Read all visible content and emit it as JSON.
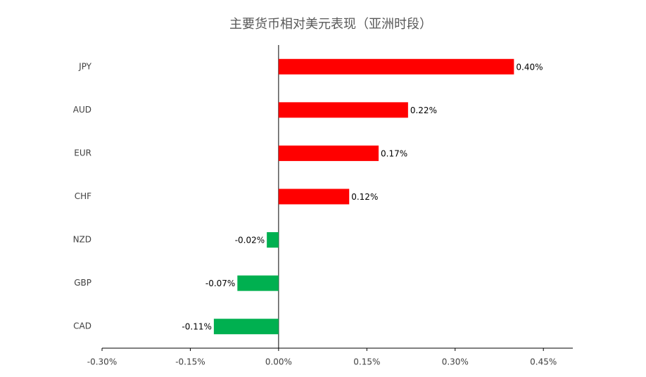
{
  "chart_data": {
    "type": "hbar",
    "title": "主要货币相对美元表现（亚洲时段）",
    "categories": [
      "JPY",
      "AUD",
      "EUR",
      "CHF",
      "NZD",
      "GBP",
      "CAD"
    ],
    "values": [
      0.4,
      0.22,
      0.17,
      0.12,
      -0.02,
      -0.07,
      -0.11
    ],
    "value_labels": [
      "0.40%",
      "0.22%",
      "0.17%",
      "0.12%",
      "-0.02%",
      "-0.07%",
      "-0.11%"
    ],
    "colors": [
      "#ff0000",
      "#ff0000",
      "#ff0000",
      "#ff0000",
      "#00b050",
      "#00b050",
      "#00b050"
    ],
    "xlim": [
      -0.3,
      0.5
    ],
    "xticks": [
      {
        "value": -0.3,
        "label": "-0.30%"
      },
      {
        "value": -0.15,
        "label": "-0.15%"
      },
      {
        "value": 0,
        "label": "0.00%"
      },
      {
        "value": 0.15,
        "label": "0.15%"
      },
      {
        "value": 0.3,
        "label": "0.30%"
      },
      {
        "value": 0.45,
        "label": "0.45%"
      }
    ],
    "grid": false
  }
}
